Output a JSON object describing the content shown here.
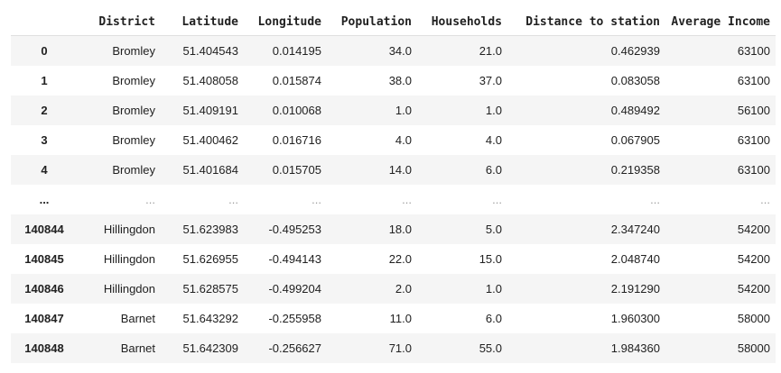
{
  "table": {
    "index_header": "",
    "columns": [
      "District",
      "Latitude",
      "Longitude",
      "Population",
      "Households",
      "Distance to station",
      "Average Income"
    ],
    "rows": [
      {
        "index": "0",
        "cells": [
          "Bromley",
          "51.404543",
          "0.014195",
          "34.0",
          "21.0",
          "0.462939",
          "63100"
        ]
      },
      {
        "index": "1",
        "cells": [
          "Bromley",
          "51.408058",
          "0.015874",
          "38.0",
          "37.0",
          "0.083058",
          "63100"
        ]
      },
      {
        "index": "2",
        "cells": [
          "Bromley",
          "51.409191",
          "0.010068",
          "1.0",
          "1.0",
          "0.489492",
          "56100"
        ]
      },
      {
        "index": "3",
        "cells": [
          "Bromley",
          "51.400462",
          "0.016716",
          "4.0",
          "4.0",
          "0.067905",
          "63100"
        ]
      },
      {
        "index": "4",
        "cells": [
          "Bromley",
          "51.401684",
          "0.015705",
          "14.0",
          "6.0",
          "0.219358",
          "63100"
        ]
      },
      {
        "index": "...",
        "cells": [
          "...",
          "...",
          "...",
          "...",
          "...",
          "...",
          "..."
        ]
      },
      {
        "index": "140844",
        "cells": [
          "Hillingdon",
          "51.623983",
          "-0.495253",
          "18.0",
          "5.0",
          "2.347240",
          "54200"
        ]
      },
      {
        "index": "140845",
        "cells": [
          "Hillingdon",
          "51.626955",
          "-0.494143",
          "22.0",
          "15.0",
          "2.048740",
          "54200"
        ]
      },
      {
        "index": "140846",
        "cells": [
          "Hillingdon",
          "51.628575",
          "-0.499204",
          "2.0",
          "1.0",
          "2.191290",
          "54200"
        ]
      },
      {
        "index": "140847",
        "cells": [
          "Barnet",
          "51.643292",
          "-0.255958",
          "11.0",
          "6.0",
          "1.960300",
          "58000"
        ]
      },
      {
        "index": "140848",
        "cells": [
          "Barnet",
          "51.642309",
          "-0.256627",
          "71.0",
          "55.0",
          "1.984360",
          "58000"
        ]
      }
    ]
  }
}
